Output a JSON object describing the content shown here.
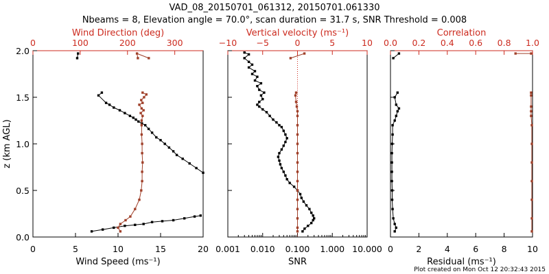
{
  "title_line1": "VAD_08_20150701_061312, 20150701.061330",
  "title_line2": "Nbeams = 8, Elevation angle = 70.0°, scan duration = 31.7 s, SNR Threshold = 0.008",
  "footer": "Plot created on Mon Oct 12 20:32:43 2015",
  "colors": {
    "black": "#000000",
    "red": "#cc2a1e",
    "brown": "#a0402a"
  },
  "chart_data": [
    {
      "type": "scatter",
      "xlabel": "Wind Speed (ms⁻¹)",
      "ylabel": "z (km AGL)",
      "xlim": [
        0,
        20
      ],
      "ylim": [
        0,
        2
      ],
      "xticks": [
        "0",
        "5",
        "10",
        "15",
        "20"
      ],
      "yticks": [
        "0.0",
        "0.5",
        "1.0",
        "1.5",
        "2.0"
      ],
      "top_axis": {
        "label": "Wind Direction (deg)",
        "lim": [
          0,
          360
        ],
        "ticks": [
          "0",
          "100",
          "200",
          "300"
        ]
      },
      "series": [
        {
          "color": "#000000",
          "points": [
            [
              6.9,
              0.06
            ],
            [
              8.2,
              0.08
            ],
            [
              9.5,
              0.1
            ],
            [
              10.8,
              0.12
            ],
            [
              12.0,
              0.13
            ],
            [
              13.0,
              0.14
            ],
            [
              14.0,
              0.16
            ],
            [
              15.2,
              0.17
            ],
            [
              16.5,
              0.18
            ],
            [
              17.8,
              0.2
            ],
            [
              19.0,
              0.22
            ],
            [
              19.7,
              0.23
            ],
            [
              20,
              0.69
            ],
            [
              19.2,
              0.74
            ],
            [
              18.4,
              0.79
            ],
            [
              17.6,
              0.84
            ],
            [
              16.9,
              0.88
            ],
            [
              16.5,
              0.92
            ],
            [
              16.0,
              0.96
            ],
            [
              15.5,
              1.0
            ],
            [
              15.0,
              1.04
            ],
            [
              14.5,
              1.07
            ],
            [
              14.0,
              1.12
            ],
            [
              13.6,
              1.16
            ],
            [
              13.2,
              1.2
            ],
            [
              12.8,
              1.22
            ],
            [
              12.4,
              1.24
            ],
            [
              12.1,
              1.26
            ],
            [
              11.8,
              1.28
            ],
            [
              11.4,
              1.3
            ],
            [
              10.8,
              1.33
            ],
            [
              10.2,
              1.36
            ],
            [
              9.5,
              1.39
            ],
            [
              9.0,
              1.42
            ],
            [
              8.6,
              1.44
            ],
            [
              7.7,
              1.52
            ],
            [
              8.1,
              1.55
            ],
            [
              5.2,
              1.92
            ],
            [
              5.3,
              1.97
            ]
          ]
        },
        {
          "color": "#a0402a",
          "points": [
            [
              185,
              0.06
            ],
            [
              180,
              0.1
            ],
            [
              185,
              0.14
            ],
            [
              196,
              0.18
            ],
            [
              206,
              0.22
            ],
            [
              216,
              0.3
            ],
            [
              225,
              0.4
            ],
            [
              229,
              0.5
            ],
            [
              231,
              0.6
            ],
            [
              231,
              0.7
            ],
            [
              232,
              0.8
            ],
            [
              231,
              0.9
            ],
            [
              231,
              1.0
            ],
            [
              230,
              1.1
            ],
            [
              230,
              1.2
            ],
            [
              230,
              1.25
            ],
            [
              232,
              1.3
            ],
            [
              228,
              1.33
            ],
            [
              234,
              1.36
            ],
            [
              230,
              1.38
            ],
            [
              225,
              1.42
            ],
            [
              232,
              1.44
            ],
            [
              229,
              1.47
            ],
            [
              235,
              1.5
            ],
            [
              240,
              1.53
            ],
            [
              232,
              1.55
            ],
            [
              222,
              1.92
            ],
            [
              220,
              1.97
            ],
            [
              245,
              1.92
            ]
          ]
        }
      ]
    },
    {
      "type": "scatter",
      "xlabel": "SNR",
      "xscale": "log",
      "xlim": [
        0.001,
        10
      ],
      "ylim": [
        0,
        2
      ],
      "xticks": [
        "0.001",
        "0.010",
        "0.100",
        "1.000",
        "10.000"
      ],
      "top_axis": {
        "label": "Vertical velocity (ms⁻¹)",
        "lim": [
          -10,
          10
        ],
        "ticks": [
          "−10",
          "−5",
          "0",
          "5",
          "10"
        ]
      },
      "series": [
        {
          "color": "#000000",
          "points": [
            [
              0.14,
              0.06
            ],
            [
              0.16,
              0.09
            ],
            [
              0.2,
              0.12
            ],
            [
              0.25,
              0.15
            ],
            [
              0.28,
              0.18
            ],
            [
              0.3,
              0.2
            ],
            [
              0.28,
              0.23
            ],
            [
              0.25,
              0.26
            ],
            [
              0.22,
              0.3
            ],
            [
              0.18,
              0.34
            ],
            [
              0.15,
              0.38
            ],
            [
              0.13,
              0.42
            ],
            [
              0.12,
              0.46
            ],
            [
              0.1,
              0.5
            ],
            [
              0.08,
              0.54
            ],
            [
              0.06,
              0.58
            ],
            [
              0.05,
              0.62
            ],
            [
              0.045,
              0.66
            ],
            [
              0.04,
              0.7
            ],
            [
              0.035,
              0.74
            ],
            [
              0.032,
              0.78
            ],
            [
              0.03,
              0.82
            ],
            [
              0.028,
              0.86
            ],
            [
              0.03,
              0.9
            ],
            [
              0.035,
              0.94
            ],
            [
              0.04,
              0.98
            ],
            [
              0.045,
              1.02
            ],
            [
              0.05,
              1.06
            ],
            [
              0.045,
              1.1
            ],
            [
              0.04,
              1.14
            ],
            [
              0.035,
              1.18
            ],
            [
              0.03,
              1.2
            ],
            [
              0.025,
              1.23
            ],
            [
              0.02,
              1.26
            ],
            [
              0.016,
              1.3
            ],
            [
              0.013,
              1.34
            ],
            [
              0.01,
              1.37
            ],
            [
              0.008,
              1.4
            ],
            [
              0.007,
              1.42
            ],
            [
              0.008,
              1.45
            ],
            [
              0.01,
              1.48
            ],
            [
              0.009,
              1.52
            ],
            [
              0.011,
              1.55
            ],
            [
              0.008,
              1.58
            ],
            [
              0.007,
              1.62
            ],
            [
              0.009,
              1.65
            ],
            [
              0.006,
              1.68
            ],
            [
              0.007,
              1.72
            ],
            [
              0.005,
              1.75
            ],
            [
              0.006,
              1.78
            ],
            [
              0.004,
              1.82
            ],
            [
              0.005,
              1.85
            ],
            [
              0.004,
              1.88
            ],
            [
              0.003,
              1.92
            ],
            [
              0.004,
              1.96
            ],
            [
              0.003,
              1.98
            ]
          ]
        },
        {
          "color": "#a0402a",
          "points": [
            [
              0,
              0.06
            ],
            [
              0,
              0.1
            ],
            [
              0,
              0.2
            ],
            [
              0,
              0.3
            ],
            [
              0,
              0.4
            ],
            [
              0,
              0.5
            ],
            [
              0,
              0.6
            ],
            [
              0,
              0.7
            ],
            [
              0,
              0.8
            ],
            [
              0,
              0.9
            ],
            [
              0,
              1.0
            ],
            [
              0,
              1.1
            ],
            [
              0,
              1.2
            ],
            [
              0,
              1.3
            ],
            [
              0,
              1.35
            ],
            [
              -0.1,
              1.4
            ],
            [
              -0.2,
              1.45
            ],
            [
              -0.3,
              1.52
            ],
            [
              -0.2,
              1.55
            ],
            [
              -1,
              1.92
            ],
            [
              1,
              1.97
            ]
          ]
        }
      ]
    },
    {
      "type": "scatter",
      "xlabel": "Residual (ms⁻¹)",
      "xlim": [
        0,
        10
      ],
      "ylim": [
        0,
        2
      ],
      "xticks": [
        "0",
        "2",
        "4",
        "6",
        "8",
        "10"
      ],
      "top_axis": {
        "label": "Correlation",
        "lim": [
          0,
          1
        ],
        "ticks": [
          "0.0",
          "0.2",
          "0.4",
          "0.6",
          "0.8",
          "1.0"
        ]
      },
      "series": [
        {
          "color": "#000000",
          "points": [
            [
              0.3,
              0.06
            ],
            [
              0.4,
              0.1
            ],
            [
              0.3,
              0.14
            ],
            [
              0.2,
              0.2
            ],
            [
              0.15,
              0.3
            ],
            [
              0.12,
              0.4
            ],
            [
              0.12,
              0.5
            ],
            [
              0.1,
              0.6
            ],
            [
              0.1,
              0.7
            ],
            [
              0.1,
              0.8
            ],
            [
              0.1,
              0.9
            ],
            [
              0.12,
              1.0
            ],
            [
              0.15,
              1.1
            ],
            [
              0.15,
              1.2
            ],
            [
              0.3,
              1.25
            ],
            [
              0.4,
              1.3
            ],
            [
              0.5,
              1.35
            ],
            [
              0.6,
              1.38
            ],
            [
              0.4,
              1.42
            ],
            [
              0.3,
              1.5
            ],
            [
              0.5,
              1.55
            ],
            [
              0.2,
              1.92
            ],
            [
              0.6,
              1.97
            ]
          ]
        },
        {
          "color": "#a0402a",
          "points": [
            [
              0.995,
              0.06
            ],
            [
              0.995,
              0.2
            ],
            [
              0.995,
              0.4
            ],
            [
              0.995,
              0.6
            ],
            [
              0.995,
              0.8
            ],
            [
              0.995,
              1.0
            ],
            [
              0.995,
              1.2
            ],
            [
              0.99,
              1.3
            ],
            [
              0.99,
              1.35
            ],
            [
              0.99,
              1.4
            ],
            [
              0.99,
              1.52
            ],
            [
              0.99,
              1.55
            ],
            [
              0.88,
              1.97
            ],
            [
              0.99,
              1.97
            ]
          ]
        }
      ]
    }
  ]
}
